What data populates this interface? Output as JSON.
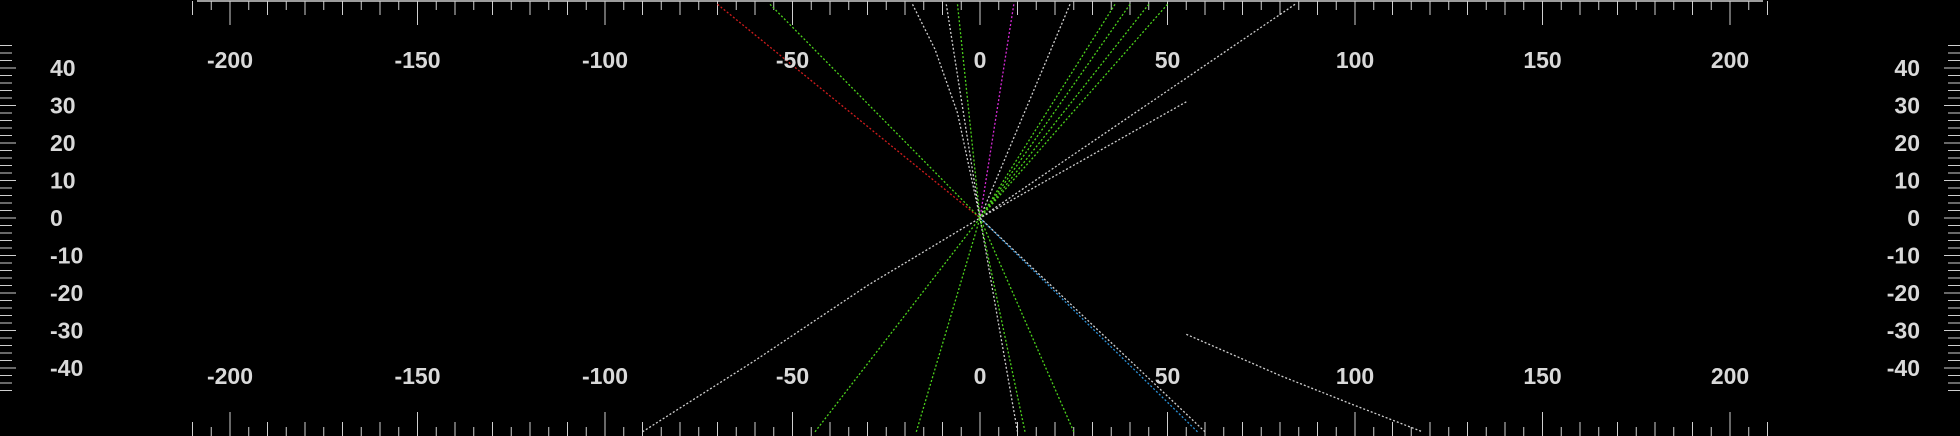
{
  "chart_data": {
    "type": "line",
    "title": "",
    "xlabel": "",
    "ylabel": "",
    "xlim": [
      -200,
      200
    ],
    "ylim": [
      -45,
      45
    ],
    "grid": false,
    "legend": "none",
    "x_ticks": [
      "-200",
      "-150",
      "-100",
      "-50",
      "0",
      "50",
      "100",
      "150",
      "200"
    ],
    "y_ticks": [
      "40",
      "30",
      "20",
      "10",
      "0",
      "-10",
      "-20",
      "-30",
      "-40"
    ],
    "x_tick_values": [
      -200,
      -150,
      -100,
      -50,
      0,
      50,
      100,
      150,
      200
    ],
    "y_tick_values": [
      40,
      30,
      20,
      10,
      0,
      -10,
      -20,
      -30,
      -40
    ],
    "series": [
      {
        "color": "#d11c1c",
        "style": "dotted",
        "points": [
          [
            -70,
            57
          ],
          [
            0,
            0
          ]
        ]
      },
      {
        "color": "#4cd21c",
        "style": "dotted",
        "points": [
          [
            -56,
            57
          ],
          [
            0,
            0
          ]
        ]
      },
      {
        "color": "#cfcfcf",
        "style": "dotted",
        "points": [
          [
            -18,
            57
          ],
          [
            -12,
            45
          ],
          [
            -6,
            28
          ],
          [
            0,
            0
          ]
        ]
      },
      {
        "color": "#cfcfcf",
        "style": "dotted",
        "points": [
          [
            -9,
            57
          ],
          [
            0,
            0
          ]
        ]
      },
      {
        "color": "#4cd21c",
        "style": "dotted",
        "points": [
          [
            -6,
            57
          ],
          [
            0,
            0
          ]
        ]
      },
      {
        "color": "#d62ad6",
        "style": "dotted",
        "points": [
          [
            9,
            57
          ],
          [
            0,
            0
          ]
        ]
      },
      {
        "color": "#cfcfcf",
        "style": "dotted",
        "points": [
          [
            24,
            57
          ],
          [
            0,
            0
          ]
        ]
      },
      {
        "color": "#4cd21c",
        "style": "dotted",
        "points": [
          [
            36,
            57
          ],
          [
            0,
            0
          ]
        ]
      },
      {
        "color": "#4cd21c",
        "style": "dotted",
        "points": [
          [
            40,
            57
          ],
          [
            0,
            0
          ]
        ]
      },
      {
        "color": "#4cd21c",
        "style": "dotted",
        "points": [
          [
            45,
            57
          ],
          [
            0,
            0
          ]
        ]
      },
      {
        "color": "#4cd21c",
        "style": "dotted",
        "points": [
          [
            50,
            57
          ],
          [
            0,
            0
          ]
        ]
      },
      {
        "color": "#cfcfcf",
        "style": "dotted",
        "points": [
          [
            84,
            57
          ],
          [
            0,
            0
          ]
        ]
      },
      {
        "color": "#cfcfcf",
        "style": "dotted",
        "points": [
          [
            55,
            31
          ],
          [
            0,
            0
          ]
        ]
      },
      {
        "color": "#cfcfcf",
        "style": "dotted",
        "points": [
          [
            -90,
            -57
          ],
          [
            -60,
            -38
          ],
          [
            -30,
            -18
          ],
          [
            0,
            0
          ]
        ]
      },
      {
        "color": "#4cd21c",
        "style": "dotted",
        "points": [
          [
            -44,
            -57
          ],
          [
            0,
            0
          ]
        ]
      },
      {
        "color": "#4cd21c",
        "style": "dotted",
        "points": [
          [
            -17,
            -57
          ],
          [
            0,
            0
          ]
        ]
      },
      {
        "color": "#cfcfcf",
        "style": "dotted",
        "points": [
          [
            10,
            -57
          ],
          [
            0,
            0
          ]
        ]
      },
      {
        "color": "#4cd21c",
        "style": "dotted",
        "points": [
          [
            12,
            -57
          ],
          [
            0,
            0
          ]
        ]
      },
      {
        "color": "#4cd21c",
        "style": "dotted",
        "points": [
          [
            25,
            -57
          ],
          [
            0,
            0
          ]
        ]
      },
      {
        "color": "#2a8fd6",
        "style": "dotted",
        "points": [
          [
            58,
            -57
          ],
          [
            0,
            0
          ]
        ]
      },
      {
        "color": "#cfcfcf",
        "style": "dotted",
        "points": [
          [
            60,
            -57
          ],
          [
            0,
            0
          ]
        ]
      },
      {
        "color": "#cfcfcf",
        "style": "dotted",
        "points": [
          [
            55,
            -31
          ],
          [
            80,
            -42
          ],
          [
            100,
            -50
          ],
          [
            118,
            -57
          ]
        ]
      }
    ]
  }
}
